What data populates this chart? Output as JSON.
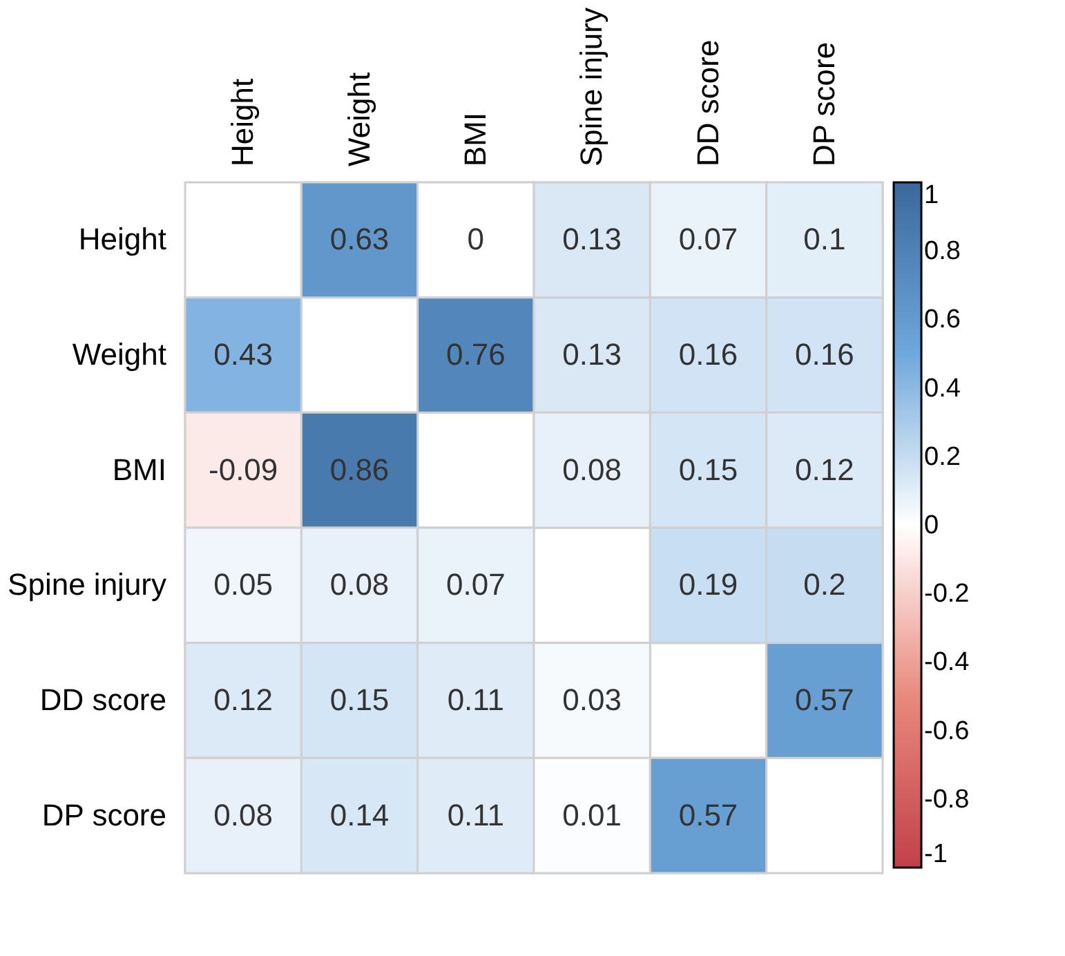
{
  "chart_data": {
    "type": "heatmap",
    "categories": [
      "Height",
      "Weight",
      "BMI",
      "Spine injury",
      "DD score",
      "DP score"
    ],
    "y_categories": [
      "Height",
      "Weight",
      "BMI",
      "Spine injury",
      "DD score",
      "DP score"
    ],
    "cells": [
      [
        null,
        0.63,
        0,
        0.13,
        0.07,
        0.1
      ],
      [
        0.43,
        null,
        0.76,
        0.13,
        0.16,
        0.16
      ],
      [
        -0.09,
        0.86,
        null,
        0.08,
        0.15,
        0.12
      ],
      [
        0.05,
        0.08,
        0.07,
        null,
        0.19,
        0.2
      ],
      [
        0.12,
        0.15,
        0.11,
        0.03,
        null,
        0.57
      ],
      [
        0.08,
        0.14,
        0.11,
        0.01,
        0.57,
        null
      ]
    ],
    "data_labels": true,
    "clim": [
      -1,
      1
    ],
    "cticks": [
      -1,
      -0.8,
      -0.6,
      -0.4,
      -0.2,
      0,
      0.2,
      0.4,
      0.6,
      0.8,
      1
    ]
  }
}
